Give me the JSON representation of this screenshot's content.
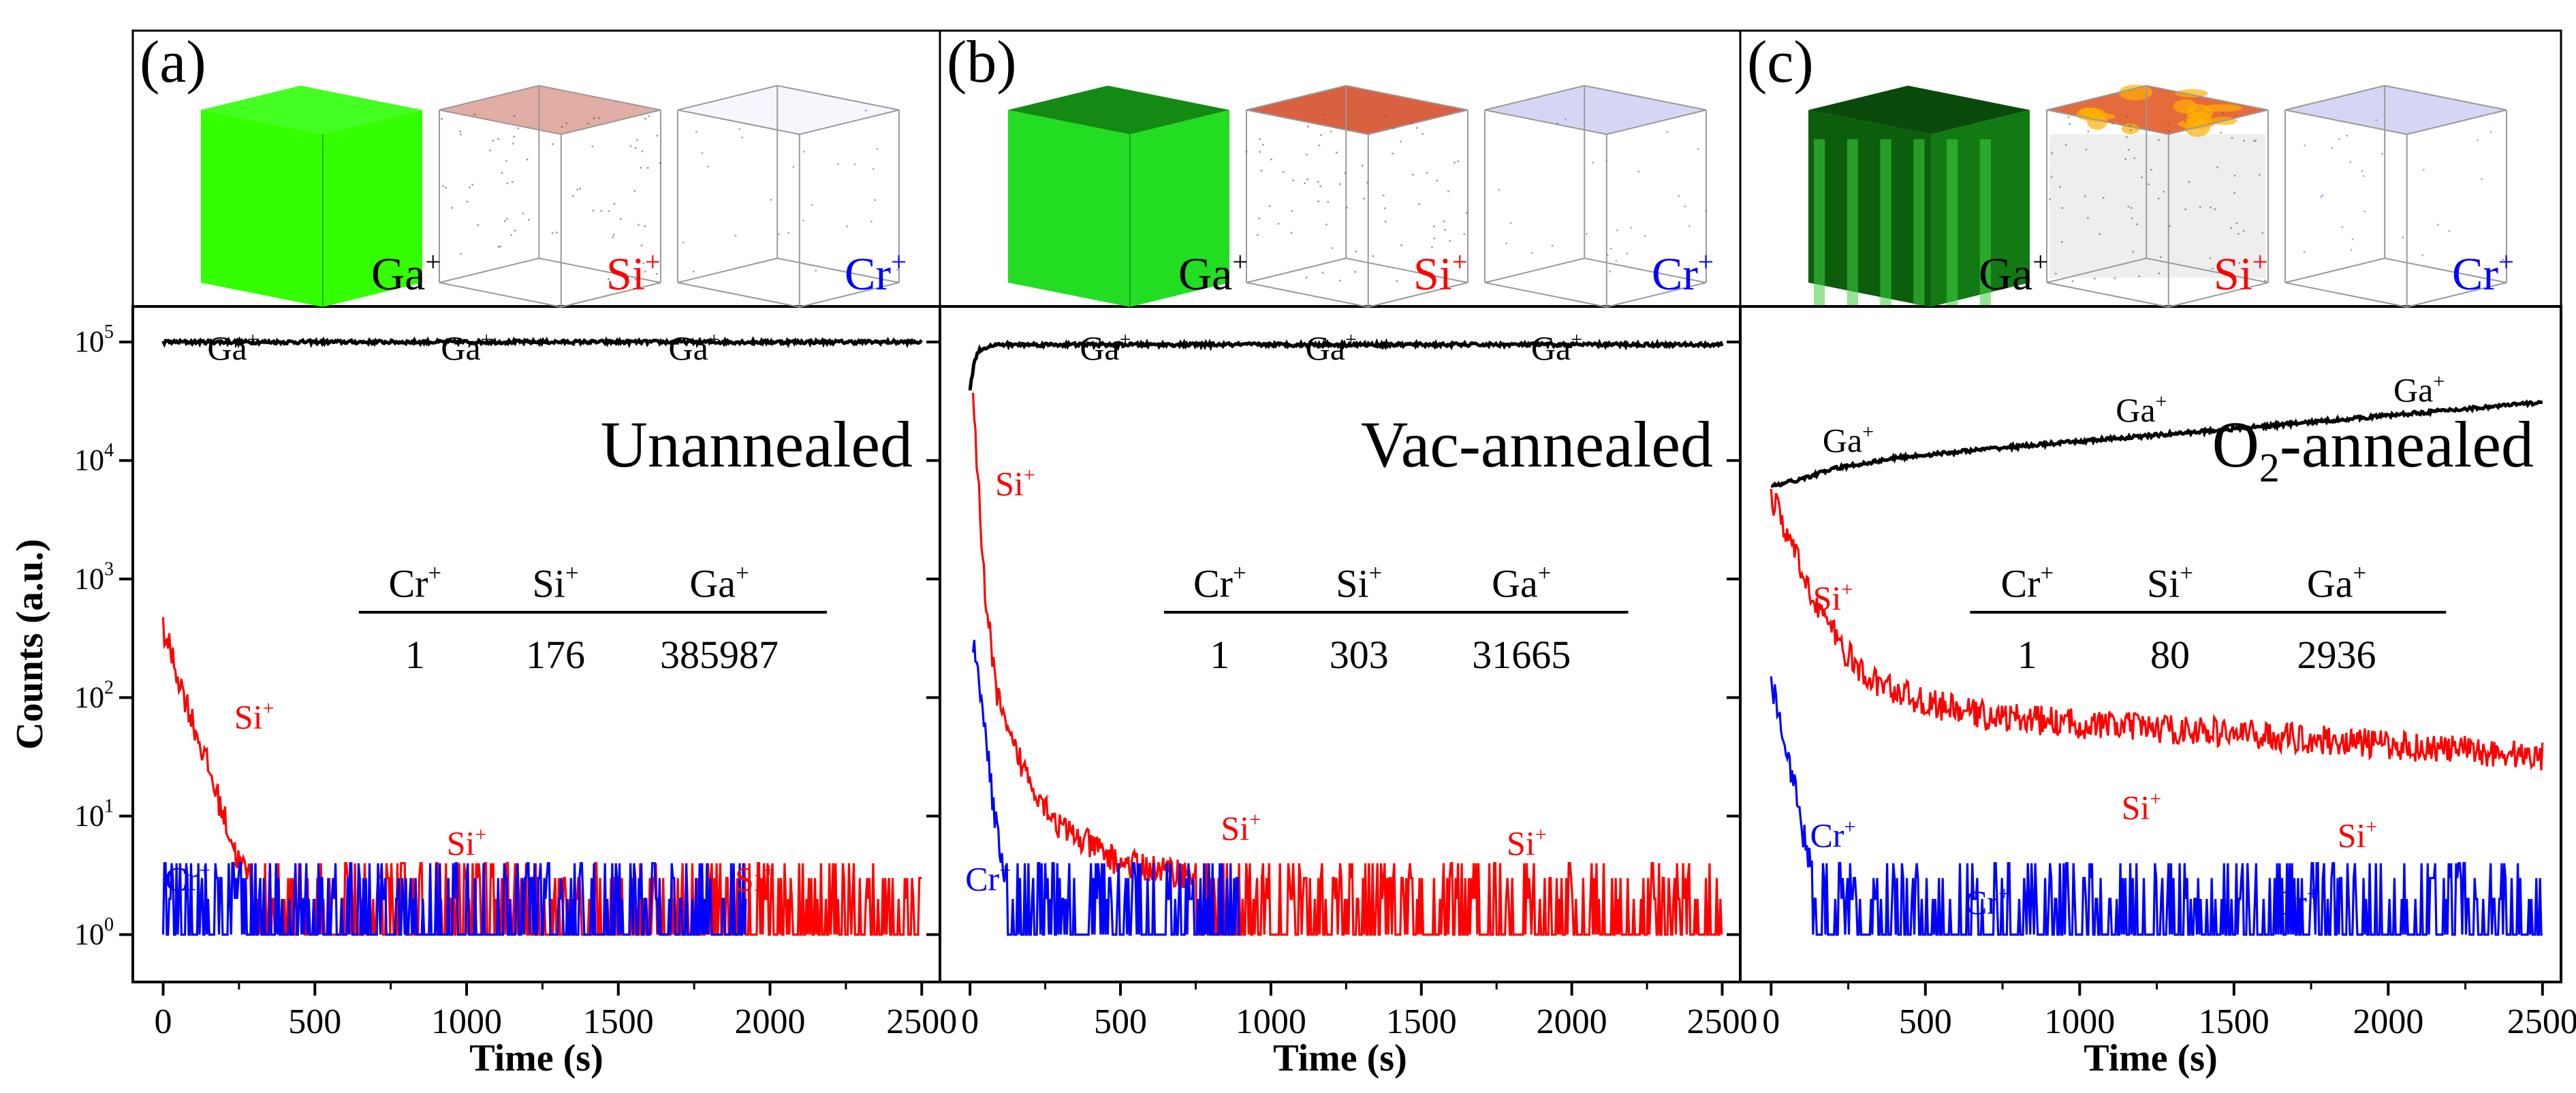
{
  "figure": {
    "ylabel": "Counts (a.u.)",
    "xlabel": "Time (s)",
    "ytick_mantissa": "10",
    "cube_labels": [
      "Ga",
      "Si",
      "Cr"
    ],
    "ion_charge": "+"
  },
  "colors": {
    "ga": "#000000",
    "si": "#ff0000",
    "cr": "#0000ff",
    "cube_ga": "#33ff00",
    "cube_ga_dark": "#0e7a0e"
  },
  "chart_data": [
    {
      "type": "line",
      "panel_label": "(a)",
      "title": "Unannealed",
      "xlabel": "Time (s)",
      "ylabel": "Counts (a.u.)",
      "xlim": [
        -100,
        2560
      ],
      "ylim_log10": [
        -0.4,
        5.3
      ],
      "xticks": [
        0,
        500,
        1000,
        1500,
        2000,
        2500
      ],
      "yticks_exp": [
        0,
        1,
        2,
        3,
        4,
        5
      ],
      "series": [
        {
          "name": "Ga+",
          "color": "#000000",
          "x": [
            0,
            500,
            1000,
            1500,
            2000,
            2500
          ],
          "y": [
            100000,
            100000,
            100000,
            100000,
            100000,
            100000
          ]
        },
        {
          "name": "Si+",
          "color": "#ff0000",
          "x": [
            0,
            50,
            100,
            150,
            200,
            250,
            300,
            400,
            600,
            1000,
            1500,
            2000,
            2500
          ],
          "y": [
            380,
            150,
            60,
            25,
            10,
            4,
            3,
            2,
            2,
            1.5,
            1.5,
            1.5,
            1.5
          ]
        },
        {
          "name": "Cr+",
          "color": "#0000ff",
          "x": [
            0,
            150,
            1900,
            1920
          ],
          "y": [
            1,
            1,
            1,
            1
          ]
        }
      ],
      "annotations": [
        {
          "text": "Ga+",
          "x": 230,
          "y": 90000
        },
        {
          "text": "Ga+",
          "x": 1000,
          "y": 90000
        },
        {
          "text": "Ga+",
          "x": 1750,
          "y": 90000
        },
        {
          "text": "Si+",
          "x": 300,
          "y": 70
        },
        {
          "text": "Si+",
          "x": 1000,
          "y": 6
        },
        {
          "text": "Si+",
          "x": 1950,
          "y": 3
        },
        {
          "text": "Cr+",
          "x": 80,
          "y": 3
        }
      ],
      "table": {
        "headers": [
          "Cr+",
          "Si+",
          "Ga+"
        ],
        "values": [
          "1",
          "176",
          "385987"
        ]
      }
    },
    {
      "type": "line",
      "panel_label": "(b)",
      "title": "Vac-annealed",
      "xlabel": "Time (s)",
      "ylabel": "Counts (a.u.)",
      "xlim": [
        -100,
        2560
      ],
      "ylim_log10": [
        -0.4,
        5.3
      ],
      "xticks": [
        0,
        500,
        1000,
        1500,
        2000,
        2500
      ],
      "yticks_exp": [
        0,
        1,
        2,
        3,
        4,
        5
      ],
      "series": [
        {
          "name": "Ga+",
          "color": "#000000",
          "x": [
            0,
            15,
            30,
            60,
            100,
            500,
            1000,
            1500,
            2000,
            2500
          ],
          "y": [
            40000,
            70000,
            85000,
            92000,
            95000,
            95000,
            95000,
            95000,
            95000,
            95000
          ]
        },
        {
          "name": "Si+",
          "color": "#ff0000",
          "x": [
            10,
            30,
            50,
            80,
            120,
            200,
            300,
            500,
            800,
            1200,
            1800,
            2500
          ],
          "y": [
            28000,
            5000,
            800,
            150,
            50,
            20,
            8,
            4,
            3,
            2,
            1.5,
            1.5
          ]
        },
        {
          "name": "Cr+",
          "color": "#0000ff",
          "x": [
            10,
            40,
            80,
            120,
            160,
            300,
            600,
            900
          ],
          "y": [
            300,
            100,
            10,
            3,
            2,
            1.5,
            1,
            1
          ]
        }
      ],
      "annotations": [
        {
          "text": "Ga+",
          "x": 450,
          "y": 90000
        },
        {
          "text": "Ga+",
          "x": 1200,
          "y": 90000
        },
        {
          "text": "Ga+",
          "x": 1950,
          "y": 90000
        },
        {
          "text": "Si+",
          "x": 150,
          "y": 6500
        },
        {
          "text": "Si+",
          "x": 900,
          "y": 8
        },
        {
          "text": "Si+",
          "x": 1850,
          "y": 6
        },
        {
          "text": "Cr+",
          "x": 60,
          "y": 3
        }
      ],
      "table": {
        "headers": [
          "Cr+",
          "Si+",
          "Ga+"
        ],
        "values": [
          "1",
          "303",
          "31665"
        ]
      }
    },
    {
      "type": "line",
      "panel_label": "(c)",
      "title": "O",
      "title_subscript": "2",
      "title_suffix": "-annealed",
      "xlabel": "Time (s)",
      "ylabel": "Counts (a.u.)",
      "xlim": [
        -100,
        2560
      ],
      "ylim_log10": [
        -0.4,
        5.3
      ],
      "xticks": [
        0,
        500,
        1000,
        1500,
        2000,
        2500
      ],
      "yticks_exp": [
        0,
        1,
        2,
        3,
        4,
        5
      ],
      "series": [
        {
          "name": "Ga+",
          "color": "#000000",
          "x": [
            0,
            50,
            100,
            200,
            400,
            700,
            1000,
            1500,
            2000,
            2500
          ],
          "y": [
            6000,
            6500,
            7000,
            8500,
            10500,
            12500,
            14500,
            18500,
            24000,
            31000
          ]
        },
        {
          "name": "Si+",
          "color": "#ff0000",
          "x": [
            0,
            50,
            100,
            200,
            300,
            500,
            700,
            1000,
            1500,
            2000,
            2500
          ],
          "y": [
            5000,
            2500,
            1100,
            350,
            150,
            90,
            70,
            60,
            50,
            40,
            32
          ]
        },
        {
          "name": "Cr+",
          "color": "#0000ff",
          "x": [
            0,
            50,
            100,
            150,
            200,
            300,
            600,
            1000,
            1500,
            2000,
            2500
          ],
          "y": [
            140,
            40,
            8,
            2,
            1.5,
            1,
            1,
            1,
            1,
            1.2,
            1.5
          ]
        }
      ],
      "annotations": [
        {
          "text": "Ga+",
          "x": 250,
          "y": 15000
        },
        {
          "text": "Ga+",
          "x": 1200,
          "y": 27000
        },
        {
          "text": "Ga+",
          "x": 2100,
          "y": 40000
        },
        {
          "text": "Si+",
          "x": 200,
          "y": 700
        },
        {
          "text": "Si+",
          "x": 1200,
          "y": 12
        },
        {
          "text": "Si+",
          "x": 1900,
          "y": 7
        },
        {
          "text": "Cr+",
          "x": 200,
          "y": 7
        },
        {
          "text": "Cr+",
          "x": 700,
          "y": 1.9
        },
        {
          "text": "Cr+",
          "x": 1700,
          "y": 1.9
        }
      ],
      "table": {
        "headers": [
          "Cr+",
          "Si+",
          "Ga+"
        ],
        "values": [
          "1",
          "80",
          "2936"
        ]
      }
    }
  ]
}
